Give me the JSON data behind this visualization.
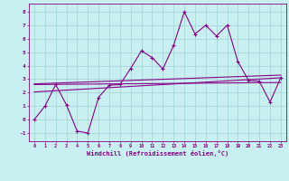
{
  "xlabel": "Windchill (Refroidissement éolien,°C)",
  "bg_color": "#c8f0f0",
  "grid_color": "#a8d8d8",
  "line_color": "#880088",
  "xlim": [
    -0.5,
    23.5
  ],
  "ylim": [
    -1.6,
    8.6
  ],
  "xticks": [
    0,
    1,
    2,
    3,
    4,
    5,
    6,
    7,
    8,
    9,
    10,
    11,
    12,
    13,
    14,
    15,
    16,
    17,
    18,
    19,
    20,
    21,
    22,
    23
  ],
  "yticks": [
    -1,
    0,
    1,
    2,
    3,
    4,
    5,
    6,
    7,
    8
  ],
  "data_x": [
    0,
    1,
    2,
    3,
    4,
    5,
    6,
    7,
    8,
    9,
    10,
    11,
    12,
    13,
    14,
    15,
    16,
    17,
    18,
    19,
    20,
    21,
    22,
    23
  ],
  "data_y": [
    0.0,
    1.0,
    2.6,
    1.1,
    -0.85,
    -1.0,
    1.65,
    2.55,
    2.6,
    3.8,
    5.1,
    4.6,
    3.75,
    5.5,
    8.0,
    6.35,
    7.0,
    6.2,
    7.0,
    4.3,
    2.9,
    2.85,
    1.3,
    3.1
  ],
  "trend1_x": [
    0,
    23
  ],
  "trend1_y": [
    2.65,
    3.3
  ],
  "trend2_x": [
    0,
    23
  ],
  "trend2_y": [
    2.6,
    2.75
  ],
  "trend3_x": [
    0,
    23
  ],
  "trend3_y": [
    2.05,
    3.1
  ]
}
